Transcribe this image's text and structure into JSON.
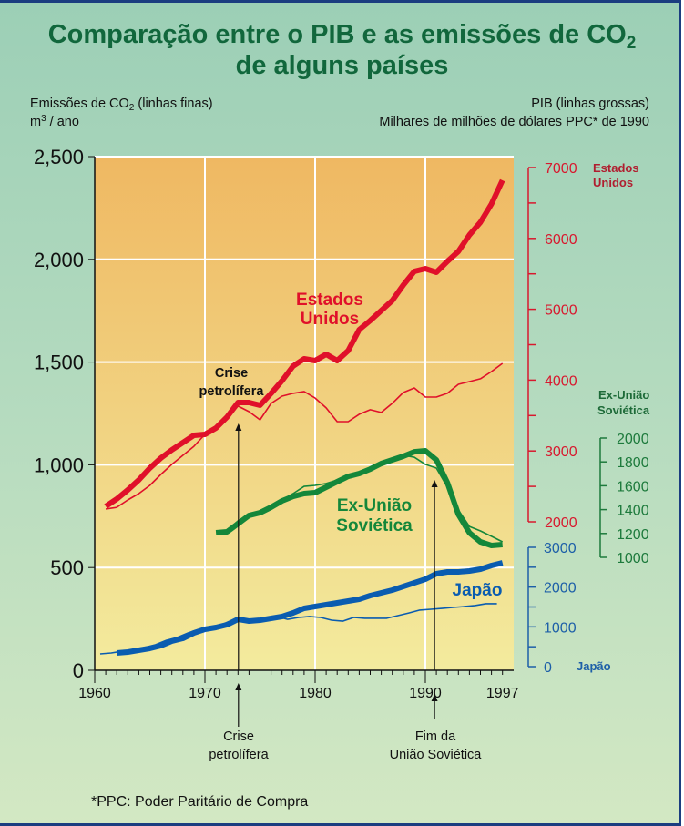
{
  "header": {
    "title_line1": "Comparação entre o PIB e as emissões de CO",
    "title_line1_sub": "2",
    "title_line2": "de alguns países",
    "left_axis_title": "Emissões de CO",
    "left_axis_title_sub": "2",
    "left_axis_title_rest": " (linhas finas)",
    "left_axis_unit_base": "m",
    "left_axis_unit_sup": "3",
    "left_axis_unit_rest": " / ano",
    "right_axis_title": "PIB (linhas grossas)",
    "right_axis_unit": "Milhares de milhões de dólares PPC* de 1990"
  },
  "footnote": "*PPC: Poder Paritário de Compra",
  "colors": {
    "usa": "#e0102a",
    "ussr": "#14873a",
    "japan": "#0a5cb0",
    "title": "#11673c",
    "plot_top": "#efb862",
    "plot_bottom": "#f3eb9e",
    "gridline": "#ffffff"
  },
  "chart_data": {
    "type": "line",
    "title": "Comparação entre o PIB e as emissões de CO2 de alguns países",
    "xlabel": "",
    "x_ticks": [
      "1960",
      "1970",
      "1980",
      "1990",
      "1997"
    ],
    "xlim": [
      1960,
      1997
    ],
    "grid": true,
    "axes": {
      "left": {
        "label": "Emissões de CO2 (linhas finas) m3 / ano",
        "ylim": [
          0,
          2500
        ],
        "ticks": [
          "0",
          "500",
          "1,000",
          "1,500",
          "2,000",
          "2,500"
        ]
      },
      "usa": {
        "label": "Estados Unidos",
        "ylim": [
          2000,
          7000
        ],
        "ticks": [
          "2000",
          "3000",
          "4000",
          "5000",
          "6000",
          "7000"
        ]
      },
      "ussr": {
        "label": "Ex-União Soviética",
        "ylim": [
          1000,
          2000
        ],
        "ticks": [
          "1000",
          "1200",
          "1400",
          "1600",
          "1800",
          "2000"
        ]
      },
      "japan": {
        "label": "Japão",
        "ylim": [
          0,
          3000
        ],
        "ticks": [
          "0",
          "1000",
          "2000",
          "3000"
        ]
      }
    },
    "series": [
      {
        "name": "Estados Unidos",
        "kind": "PIB",
        "axis": "usa",
        "color": "#e0102a",
        "thick": true,
        "start": 1961,
        "values": [
          2219,
          2322,
          2450,
          2591,
          2758,
          2900,
          3016,
          3118,
          3221,
          3234,
          3324,
          3478,
          3684,
          3684,
          3645,
          3812,
          3992,
          4198,
          4301,
          4275,
          4365,
          4275,
          4417,
          4712,
          4841,
          4982,
          5124,
          5342,
          5535,
          5573,
          5522,
          5676,
          5818,
          6049,
          6229,
          6486,
          6820
        ]
      },
      {
        "name": "Estados Unidos",
        "kind": "CO2",
        "axis": "left",
        "color": "#e0102a",
        "thick": false,
        "start": 1961,
        "values": [
          785,
          793,
          829,
          860,
          900,
          953,
          1002,
          1046,
          1090,
          1148,
          1179,
          1224,
          1286,
          1259,
          1219,
          1299,
          1334,
          1348,
          1357,
          1325,
          1277,
          1210,
          1210,
          1246,
          1268,
          1255,
          1299,
          1352,
          1374,
          1330,
          1330,
          1348,
          1392,
          1405,
          1419,
          1454,
          1494
        ]
      },
      {
        "name": "Ex-União Soviética",
        "kind": "PIB",
        "axis": "ussr",
        "color": "#14873a",
        "thick": true,
        "start": 1971,
        "values": [
          1206,
          1214,
          1282,
          1351,
          1374,
          1420,
          1473,
          1511,
          1534,
          1542,
          1588,
          1634,
          1679,
          1702,
          1740,
          1786,
          1817,
          1847,
          1885,
          1893,
          1817,
          1626,
          1359,
          1206,
          1130,
          1099,
          1107
        ]
      },
      {
        "name": "Ex-União Soviética",
        "kind": "CO2",
        "axis": "left",
        "color": "#14873a",
        "thick": false,
        "start": 1972,
        "values": [
          678,
          727,
          758,
          776,
          798,
          829,
          860,
          895,
          900,
          909,
          926,
          949,
          962,
          984,
          1011,
          1033,
          1046,
          1037,
          1002,
          984,
          891,
          780,
          700,
          678,
          652,
          625
        ]
      },
      {
        "name": "Japão",
        "kind": "PIB",
        "axis": "japan",
        "color": "#0a5cb0",
        "thick": true,
        "start": 1962,
        "values": [
          344,
          366,
          412,
          458,
          527,
          641,
          710,
          847,
          939,
          985,
          1053,
          1191,
          1145,
          1168,
          1214,
          1260,
          1351,
          1466,
          1511,
          1557,
          1603,
          1649,
          1695,
          1786,
          1855,
          1924,
          2015,
          2107,
          2198,
          2336,
          2382,
          2382,
          2405,
          2450,
          2542,
          2611
        ]
      },
      {
        "name": "Japão",
        "kind": "CO2",
        "axis": "left",
        "color": "#0a5cb0",
        "thick": false,
        "start": 1960.5,
        "values": [
          80,
          84,
          93,
          102,
          111,
          124,
          146,
          160,
          182,
          200,
          208,
          222,
          244,
          239,
          244,
          253,
          262,
          248,
          257,
          262,
          257,
          244,
          239,
          257,
          253,
          253,
          253,
          266,
          279,
          293,
          297,
          301,
          306,
          310,
          315,
          324,
          324
        ]
      }
    ],
    "annotations": [
      {
        "text_line1": "Crise",
        "text_line2": "petrolífera",
        "year": 1973
      },
      {
        "text_line1": "Fim da",
        "text_line2": "União Soviética",
        "year": 1991
      }
    ],
    "series_labels": {
      "usa_line1": "Estados",
      "usa_line2": "Unidos",
      "ussr_line1": "Ex-União",
      "ussr_line2": "Soviética",
      "japan": "Japão"
    },
    "axis_labels": {
      "usa_line1": "Estados",
      "usa_line2": "Unidos",
      "ussr_line1": "Ex-União",
      "ussr_line2": "Soviética",
      "japan": "Japão"
    }
  }
}
